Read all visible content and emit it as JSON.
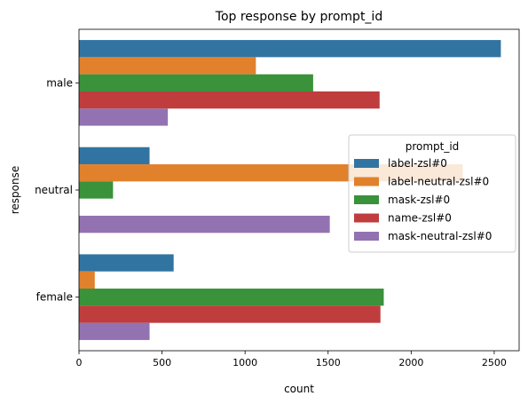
{
  "chart_data": {
    "type": "bar",
    "orientation": "horizontal",
    "title": "Top  response by prompt_id",
    "xlabel": "count",
    "ylabel": "response",
    "categories": [
      "male",
      "neutral",
      "female"
    ],
    "xlim": [
      0,
      2650
    ],
    "xticks": [
      0,
      500,
      1000,
      1500,
      2000,
      2500
    ],
    "grid": false,
    "legend": {
      "title": "prompt_id",
      "placement": "center-right"
    },
    "series": [
      {
        "name": "label-zsl#0",
        "color": "#3274a1",
        "values": [
          2540,
          425,
          570
        ]
      },
      {
        "name": "label-neutral-zsl#0",
        "color": "#e1812c",
        "values": [
          1065,
          2310,
          95
        ]
      },
      {
        "name": "mask-zsl#0",
        "color": "#3a923a",
        "values": [
          1410,
          205,
          1835
        ]
      },
      {
        "name": "name-zsl#0",
        "color": "#c03d3e",
        "values": [
          1810,
          0,
          1815
        ]
      },
      {
        "name": "mask-neutral-zsl#0",
        "color": "#9372b2",
        "values": [
          535,
          1510,
          425
        ]
      }
    ]
  }
}
